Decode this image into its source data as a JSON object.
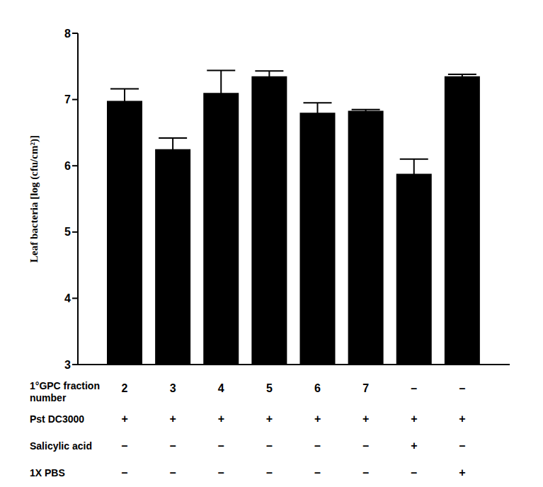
{
  "chart_data": {
    "type": "bar",
    "ylabel": "Leaf bacteria [log (cfu/cm²)]",
    "category_row_label": "1°GPC fraction number",
    "categories": [
      "2",
      "3",
      "4",
      "5",
      "6",
      "7",
      "–",
      "–"
    ],
    "values": [
      6.98,
      6.25,
      7.1,
      7.35,
      6.8,
      6.83,
      5.88,
      7.35
    ],
    "errors": [
      0.18,
      0.17,
      0.34,
      0.08,
      0.15,
      0.02,
      0.22,
      0.03
    ],
    "rows": [
      {
        "label": "Pst DC3000",
        "values": [
          "+",
          "+",
          "+",
          "+",
          "+",
          "+",
          "+",
          "+"
        ]
      },
      {
        "label": "Salicylic acid",
        "values": [
          "–",
          "–",
          "–",
          "–",
          "–",
          "–",
          "+",
          "–"
        ]
      },
      {
        "label": "1X PBS",
        "values": [
          "–",
          "–",
          "–",
          "–",
          "–",
          "–",
          "–",
          "+"
        ]
      }
    ],
    "color": "#000000",
    "ylim": [
      3,
      8
    ],
    "yticks": [
      3,
      4,
      5,
      6,
      7,
      8
    ]
  }
}
